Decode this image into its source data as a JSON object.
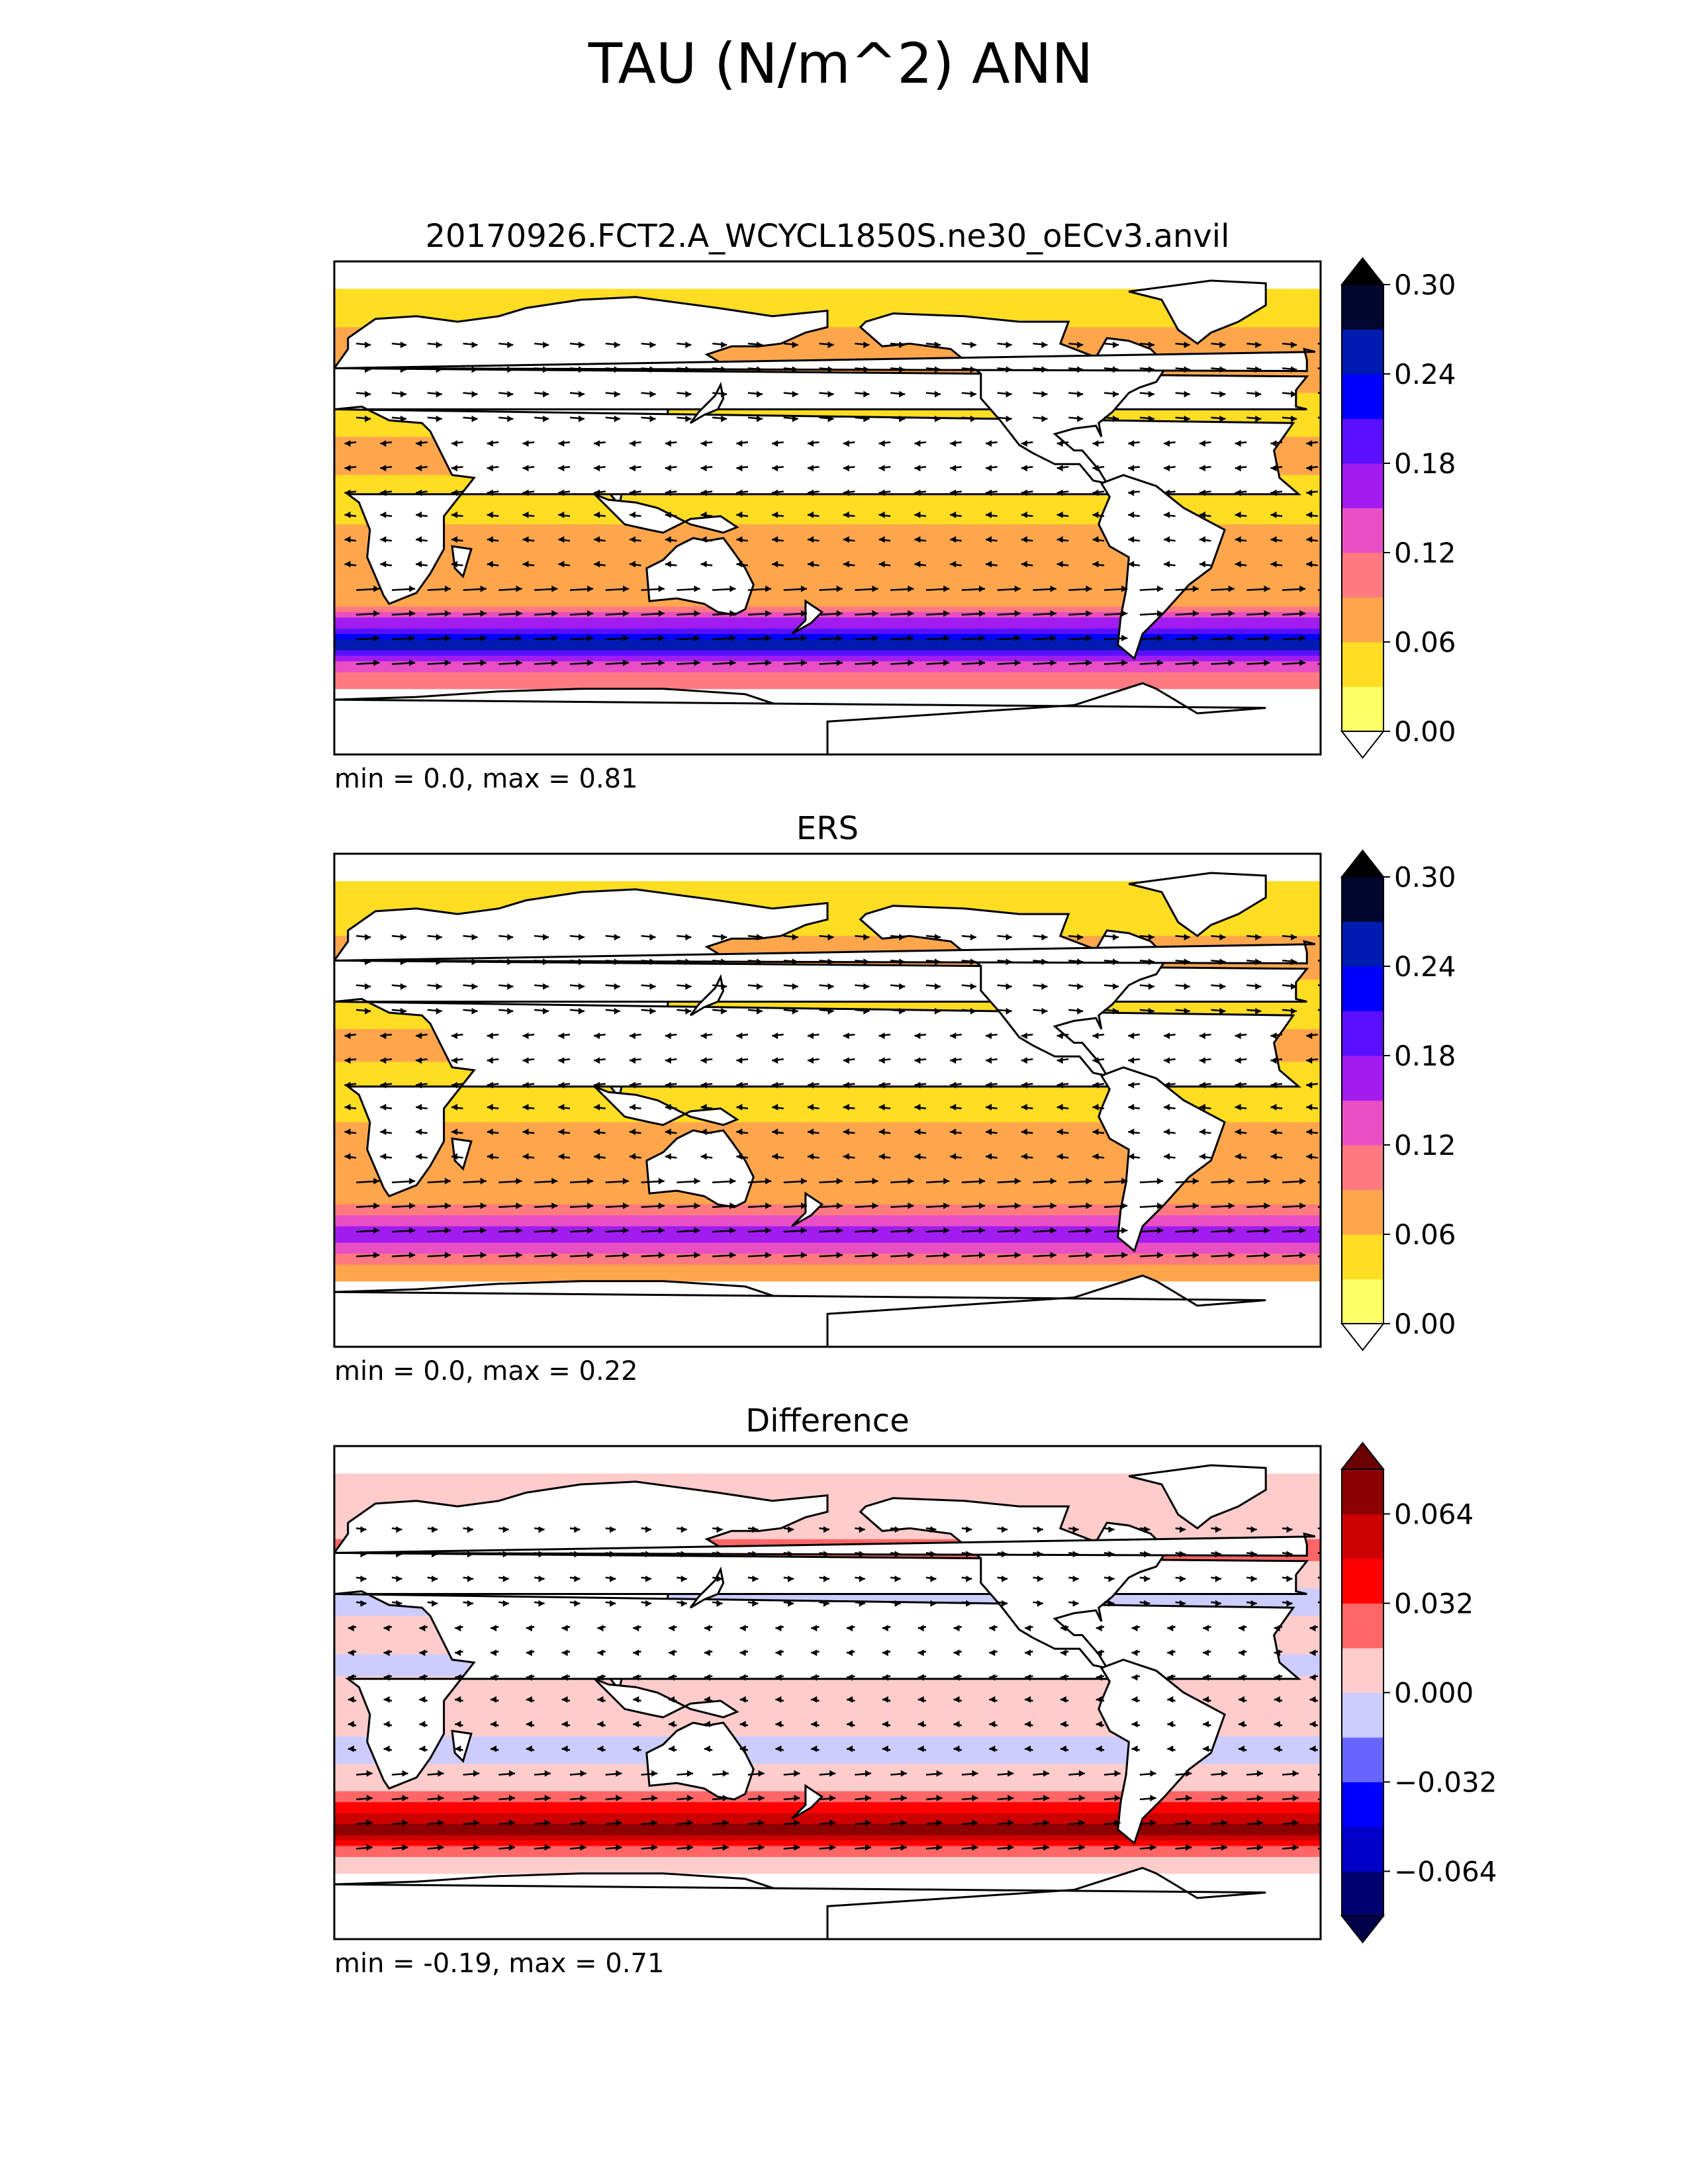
{
  "figure": {
    "title": "TAU (N/m^2) ANN"
  },
  "chart_data": [
    {
      "type": "heatmap",
      "panel": "test",
      "title": "20170926.FCT2.A_WCYCL1850S.ne30_oECv3.anvil",
      "stats": "min = 0.0, max = 0.81",
      "colorbar": {
        "levels": [
          0.0,
          0.03,
          0.06,
          0.09,
          0.12,
          0.15,
          0.18,
          0.21,
          0.24,
          0.27,
          0.3
        ],
        "tick_labels": [
          "0.00",
          "0.06",
          "0.12",
          "0.18",
          "0.24",
          "0.30"
        ],
        "colors": [
          "#ffff66",
          "#ffdd22",
          "#ffa64d",
          "#ff7a80",
          "#e84fc4",
          "#a21cf0",
          "#5a10ff",
          "#0000ff",
          "#001bb0",
          "#00062e"
        ],
        "extend": "both",
        "under_color": "#ffffff",
        "over_color": "#000000"
      },
      "zonal_profile": {
        "lat": [
          80,
          65,
          50,
          35,
          20,
          10,
          0,
          -10,
          -20,
          -35,
          -45,
          -50,
          -55,
          -62
        ],
        "value": [
          0.05,
          0.06,
          0.085,
          0.04,
          0.075,
          0.055,
          0.04,
          0.075,
          0.06,
          0.075,
          0.2,
          0.26,
          0.17,
          0.09
        ]
      },
      "vectors": "wind stress arrows (eastward in mid-latitudes, westward in trades)"
    },
    {
      "type": "heatmap",
      "panel": "reference",
      "title": "ERS",
      "stats": "min = 0.0, max = 0.22",
      "colorbar": {
        "levels": [
          0.0,
          0.03,
          0.06,
          0.09,
          0.12,
          0.15,
          0.18,
          0.21,
          0.24,
          0.27,
          0.3
        ],
        "tick_labels": [
          "0.00",
          "0.06",
          "0.12",
          "0.18",
          "0.24",
          "0.30"
        ],
        "colors": [
          "#ffff66",
          "#ffdd22",
          "#ffa64d",
          "#ff7a80",
          "#e84fc4",
          "#a21cf0",
          "#5a10ff",
          "#0000ff",
          "#001bb0",
          "#00062e"
        ],
        "extend": "both",
        "under_color": "#ffffff",
        "over_color": "#000000"
      },
      "zonal_profile": {
        "lat": [
          80,
          65,
          50,
          35,
          20,
          10,
          0,
          -10,
          -20,
          -35,
          -45,
          -50,
          -55,
          -62
        ],
        "value": [
          0.04,
          0.05,
          0.075,
          0.04,
          0.07,
          0.05,
          0.035,
          0.07,
          0.06,
          0.07,
          0.14,
          0.17,
          0.12,
          0.07
        ]
      },
      "vectors": "wind stress arrows"
    },
    {
      "type": "heatmap",
      "panel": "difference",
      "title": "Difference",
      "stats": "min = -0.19, max = 0.71",
      "colorbar": {
        "levels": [
          -0.08,
          -0.064,
          -0.048,
          -0.032,
          -0.016,
          0.0,
          0.016,
          0.032,
          0.048,
          0.064,
          0.08
        ],
        "tick_labels": [
          "−0.064",
          "−0.032",
          "0.000",
          "0.032",
          "0.064"
        ],
        "colors": [
          "#000070",
          "#0000c8",
          "#0000ff",
          "#6666ff",
          "#ccccff",
          "#ffcccc",
          "#ff6666",
          "#ff0000",
          "#cc0000",
          "#8b0000"
        ],
        "extend": "both",
        "under_color": "#00004a",
        "over_color": "#6b0000"
      },
      "zonal_profile": {
        "lat": [
          80,
          65,
          50,
          35,
          20,
          10,
          0,
          -10,
          -20,
          -35,
          -45,
          -50,
          -55,
          -62
        ],
        "value": [
          0.01,
          0.01,
          0.02,
          -0.005,
          0.005,
          -0.005,
          0.005,
          0.005,
          -0.005,
          0.01,
          0.05,
          0.07,
          0.04,
          0.01
        ]
      },
      "vectors": "difference wind stress arrows"
    }
  ]
}
